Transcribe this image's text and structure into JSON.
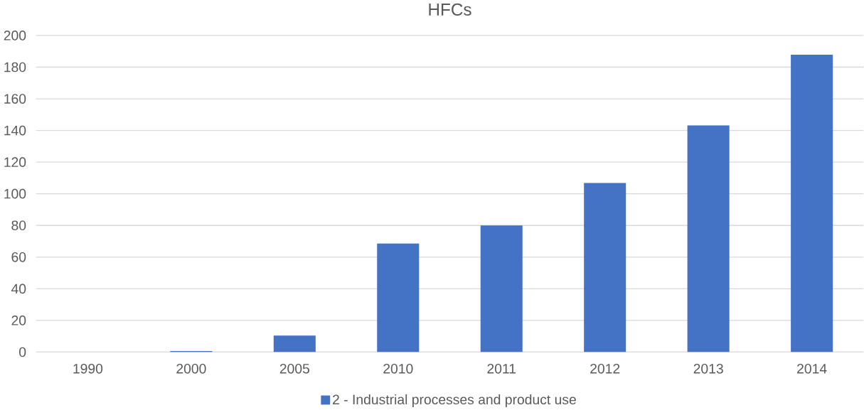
{
  "chart_data": {
    "type": "bar",
    "title": "HFCs",
    "categories": [
      "1990",
      "2000",
      "2005",
      "2010",
      "2011",
      "2012",
      "2013",
      "2014"
    ],
    "series": [
      {
        "name": "2 - Industrial processes and product use",
        "color": "#4472c4",
        "values": [
          0,
          0.7,
          10.4,
          68.6,
          80,
          106.8,
          143.2,
          187.9
        ]
      }
    ],
    "ylim": [
      0,
      200
    ],
    "yticks": [
      0,
      20,
      40,
      60,
      80,
      100,
      120,
      140,
      160,
      180,
      200
    ],
    "grid": "y",
    "legend": "bottom"
  }
}
